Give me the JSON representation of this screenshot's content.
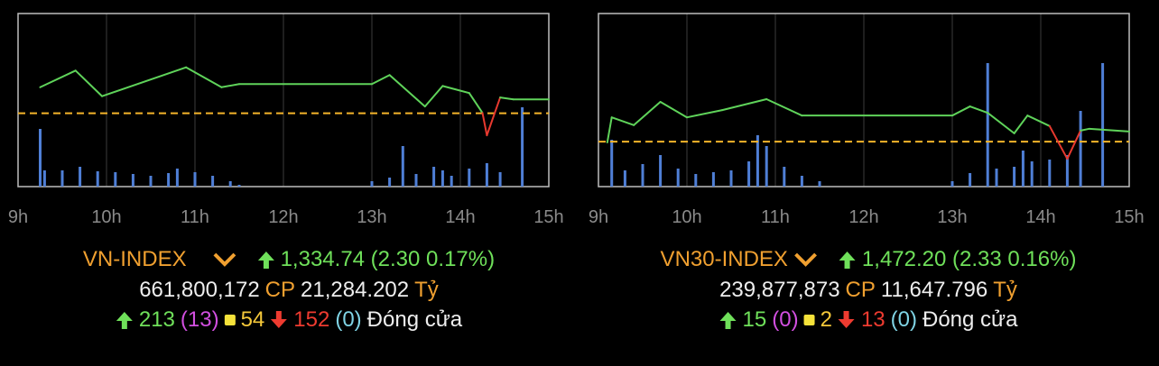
{
  "chart_data": [
    {
      "type": "line",
      "color": "#5fd35a",
      "below_color": "#e8392f",
      "ref_value": 1332.44,
      "ref_color": "#f5b52a",
      "xlim": [
        9,
        15
      ],
      "ylim": [
        1321,
        1348
      ],
      "xticks": [
        {
          "value": 9,
          "label": "9h"
        },
        {
          "value": 10,
          "label": "10h"
        },
        {
          "value": 11,
          "label": "11h"
        },
        {
          "value": 12,
          "label": "12h"
        },
        {
          "value": 13,
          "label": "13h"
        },
        {
          "value": 14,
          "label": "14h"
        },
        {
          "value": 15,
          "label": "15h"
        }
      ],
      "x": [
        9.25,
        9.65,
        9.95,
        10.9,
        11.3,
        11.5,
        13.0,
        13.2,
        13.6,
        13.8,
        14.1,
        14.25,
        14.3,
        14.45,
        14.6,
        15
      ],
      "values": [
        1336.5,
        1339.1,
        1335.1,
        1339.6,
        1336.5,
        1337.0,
        1337.0,
        1338.4,
        1333.5,
        1336.7,
        1335.6,
        1332.5,
        1329.0,
        1334.9,
        1334.6,
        1334.6
      ],
      "volume": {
        "color": "#4f7fd6",
        "vlim": [
          0,
          150
        ],
        "x": [
          9.25,
          9.3,
          9.5,
          9.7,
          9.9,
          10.1,
          10.3,
          10.5,
          10.7,
          10.8,
          11.0,
          11.2,
          11.4,
          11.5,
          13.0,
          13.2,
          13.35,
          13.5,
          13.7,
          13.8,
          13.9,
          14.1,
          14.3,
          14.45,
          14.7
        ],
        "values": [
          64,
          18,
          18,
          22,
          17,
          16,
          14,
          12,
          15,
          20,
          16,
          12,
          6,
          2,
          6,
          10,
          45,
          14,
          22,
          18,
          12,
          20,
          26,
          16,
          88
        ]
      }
    },
    {
      "type": "line",
      "color": "#5fd35a",
      "below_color": "#e8392f",
      "ref_value": 1469.87,
      "ref_color": "#f5b52a",
      "xlim": [
        9,
        15
      ],
      "ylim": [
        1460,
        1498
      ],
      "xticks": [
        {
          "value": 9,
          "label": "9h"
        },
        {
          "value": 10,
          "label": "10h"
        },
        {
          "value": 11,
          "label": "11h"
        },
        {
          "value": 12,
          "label": "12h"
        },
        {
          "value": 13,
          "label": "13h"
        },
        {
          "value": 14,
          "label": "14h"
        },
        {
          "value": 15,
          "label": "15h"
        }
      ],
      "x": [
        9.1,
        9.15,
        9.4,
        9.7,
        10.0,
        10.4,
        10.9,
        11.3,
        13.0,
        13.2,
        13.4,
        13.7,
        13.85,
        14.1,
        14.3,
        14.45,
        14.55,
        15
      ],
      "values": [
        1469.7,
        1475.2,
        1473.5,
        1478.6,
        1475.2,
        1476.8,
        1479.2,
        1475.6,
        1475.6,
        1477.6,
        1476.2,
        1471.7,
        1475.6,
        1473.3,
        1466.1,
        1472.3,
        1472.7,
        1472.1
      ],
      "volume": {
        "color": "#4f7fd6",
        "vlim": [
          0,
          150
        ],
        "x": [
          9.15,
          9.3,
          9.5,
          9.7,
          9.9,
          10.1,
          10.3,
          10.5,
          10.7,
          10.8,
          10.9,
          11.1,
          11.3,
          11.5,
          13.0,
          13.2,
          13.4,
          13.5,
          13.7,
          13.8,
          13.9,
          14.1,
          14.3,
          14.45,
          14.7
        ],
        "values": [
          52,
          18,
          25,
          35,
          20,
          14,
          16,
          18,
          28,
          57,
          45,
          22,
          12,
          6,
          6,
          15,
          137,
          20,
          22,
          40,
          28,
          30,
          35,
          84,
          137
        ]
      }
    }
  ],
  "summary": [
    {
      "name": "VN-INDEX",
      "change": "1,334.74 (2.30 0.17%)",
      "volume": "661,800,172",
      "cp": "CP",
      "value": "21,284.202",
      "unit": "Tỷ",
      "up": "213",
      "ceiling": "(13)",
      "flat": "54",
      "down": "152",
      "floor": "(0)",
      "status": "Đóng cửa"
    },
    {
      "name": "VN30-INDEX",
      "change": "1,472.20 (2.33 0.16%)",
      "volume": "239,877,873",
      "cp": "CP",
      "value": "11,647.796",
      "unit": "Tỷ",
      "up": "15",
      "ceiling": "(0)",
      "flat": "2",
      "down": "13",
      "floor": "(0)",
      "status": "Đóng cửa"
    }
  ]
}
